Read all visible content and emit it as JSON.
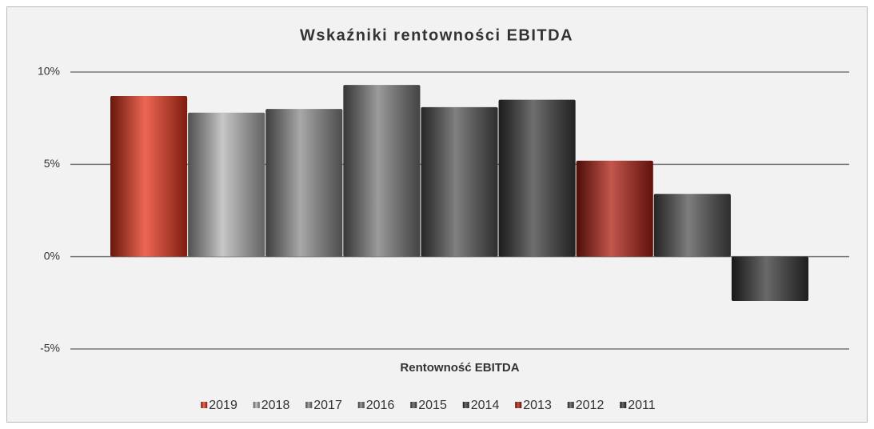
{
  "chart_data": {
    "type": "bar",
    "title": "Wskaźniki rentowności EBITDA",
    "categories": [
      "Rentowność EBITDA"
    ],
    "series": [
      {
        "name": "2019",
        "color": "#e8341a",
        "values": [
          8.7
        ]
      },
      {
        "name": "2018",
        "color": "#b5b5b5",
        "values": [
          7.8
        ]
      },
      {
        "name": "2017",
        "color": "#8c8c8c",
        "values": [
          8.0
        ]
      },
      {
        "name": "2016",
        "color": "#7a7a7a",
        "values": [
          9.3
        ]
      },
      {
        "name": "2015",
        "color": "#555555",
        "values": [
          8.1
        ]
      },
      {
        "name": "2014",
        "color": "#3e3e3e",
        "values": [
          8.5
        ]
      },
      {
        "name": "2013",
        "color": "#b01e12",
        "values": [
          5.2
        ]
      },
      {
        "name": "2012",
        "color": "#525252",
        "values": [
          3.4
        ]
      },
      {
        "name": "2011",
        "color": "#383838",
        "values": [
          -2.4
        ]
      }
    ],
    "ylim": [
      -5,
      10
    ],
    "yticks": [
      {
        "value": -5,
        "label": "-5%"
      },
      {
        "value": 0,
        "label": "0%"
      },
      {
        "value": 5,
        "label": "5%"
      },
      {
        "value": 10,
        "label": "10%"
      }
    ],
    "grid": true,
    "legend": "bottom"
  }
}
